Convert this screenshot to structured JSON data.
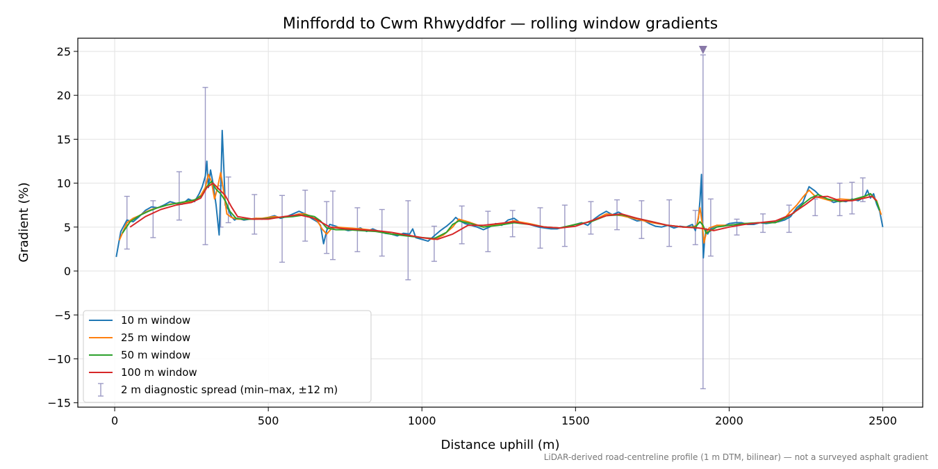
{
  "chart_data": {
    "type": "line",
    "title": "Minffordd to Cwm Rhwyddfor — rolling window gradients",
    "xlabel": "Distance uphill (m)",
    "ylabel": "Gradient (%)",
    "xlim": [
      -120,
      2630
    ],
    "ylim": [
      -15.5,
      26.5
    ],
    "xticks": [
      0,
      500,
      1000,
      1500,
      2000,
      2500
    ],
    "xtick_labels": [
      "0",
      "500",
      "1000",
      "1500",
      "2000",
      "2500"
    ],
    "yticks": [
      -15,
      -10,
      -5,
      0,
      5,
      10,
      15,
      20,
      25
    ],
    "ytick_labels": [
      "−15",
      "−10",
      "−5",
      "0",
      "5",
      "10",
      "15",
      "20",
      "25"
    ],
    "grid": true,
    "legend_position": "lower-left",
    "footnote": "LiDAR-derived road-centreline profile (1 m DTM, bilinear) — not a surveyed asphalt gradient",
    "series": [
      {
        "name": "10 m window",
        "color": "#1f77b4",
        "x": [
          5,
          20,
          40,
          60,
          80,
          100,
          120,
          140,
          160,
          180,
          200,
          220,
          240,
          260,
          275,
          285,
          295,
          300,
          305,
          312,
          320,
          330,
          340,
          345,
          350,
          355,
          360,
          370,
          380,
          390,
          400,
          420,
          440,
          460,
          480,
          500,
          520,
          540,
          560,
          580,
          600,
          620,
          640,
          660,
          670,
          680,
          690,
          700,
          720,
          740,
          760,
          780,
          800,
          820,
          840,
          860,
          880,
          900,
          920,
          940,
          960,
          970,
          980,
          1000,
          1020,
          1040,
          1060,
          1080,
          1100,
          1110,
          1120,
          1140,
          1160,
          1180,
          1200,
          1220,
          1240,
          1260,
          1280,
          1300,
          1320,
          1340,
          1360,
          1380,
          1400,
          1420,
          1440,
          1460,
          1480,
          1500,
          1520,
          1540,
          1560,
          1580,
          1600,
          1620,
          1640,
          1660,
          1680,
          1700,
          1720,
          1740,
          1760,
          1780,
          1800,
          1820,
          1840,
          1860,
          1880,
          1890,
          1900,
          1905,
          1910,
          1913,
          1916,
          1920,
          1925,
          1930,
          1940,
          1960,
          1980,
          2000,
          2020,
          2040,
          2060,
          2080,
          2100,
          2120,
          2140,
          2160,
          2180,
          2200,
          2220,
          2240,
          2260,
          2280,
          2300,
          2320,
          2340,
          2360,
          2380,
          2400,
          2420,
          2440,
          2450,
          2460,
          2470,
          2480,
          2490,
          2500
        ],
        "values": [
          1.6,
          4.5,
          5.8,
          5.6,
          6.2,
          6.9,
          7.3,
          7.2,
          7.5,
          7.9,
          7.7,
          7.6,
          8.2,
          7.9,
          8.8,
          9.6,
          10.8,
          12.5,
          9.5,
          11.5,
          10.0,
          7.5,
          4.1,
          9.0,
          16.0,
          12.0,
          7.5,
          7.0,
          6.2,
          5.8,
          6.0,
          5.8,
          5.9,
          6.0,
          5.9,
          6.1,
          6.3,
          6.0,
          6.2,
          6.5,
          6.8,
          6.5,
          6.0,
          5.6,
          5.2,
          3.1,
          4.6,
          5.3,
          5.1,
          4.8,
          4.6,
          4.7,
          4.9,
          4.5,
          4.8,
          4.5,
          4.3,
          4.2,
          4.0,
          4.3,
          4.2,
          4.8,
          3.8,
          3.6,
          3.4,
          4.0,
          4.6,
          5.1,
          5.7,
          6.1,
          5.8,
          5.4,
          5.2,
          5.0,
          4.7,
          5.0,
          5.4,
          5.2,
          5.8,
          6.0,
          5.5,
          5.4,
          5.2,
          5.0,
          4.9,
          4.8,
          4.8,
          5.0,
          5.1,
          5.3,
          5.5,
          5.2,
          5.9,
          6.4,
          6.8,
          6.4,
          6.7,
          6.3,
          6.0,
          5.7,
          5.8,
          5.4,
          5.1,
          5.0,
          5.2,
          4.9,
          5.1,
          5.0,
          5.3,
          4.6,
          6.0,
          8.0,
          11.0,
          5.0,
          1.5,
          3.5,
          4.8,
          4.2,
          4.8,
          5.2,
          5.1,
          5.4,
          5.5,
          5.5,
          5.3,
          5.3,
          5.5,
          5.4,
          5.5,
          5.6,
          5.8,
          6.2,
          7.2,
          7.8,
          9.6,
          9.1,
          8.4,
          8.2,
          7.8,
          8.0,
          7.9,
          8.2,
          8.0,
          8.4,
          9.2,
          8.3,
          8.8,
          7.6,
          6.8,
          5.0
        ]
      },
      {
        "name": "25 m window",
        "color": "#ff7f0e",
        "x": [
          15,
          40,
          60,
          80,
          100,
          120,
          140,
          160,
          180,
          200,
          220,
          240,
          260,
          280,
          295,
          305,
          315,
          325,
          335,
          345,
          355,
          365,
          380,
          400,
          420,
          440,
          460,
          480,
          500,
          520,
          540,
          560,
          580,
          600,
          620,
          640,
          660,
          675,
          690,
          705,
          720,
          760,
          800,
          850,
          900,
          950,
          1000,
          1040,
          1070,
          1100,
          1120,
          1150,
          1200,
          1250,
          1300,
          1350,
          1400,
          1450,
          1500,
          1550,
          1600,
          1650,
          1700,
          1750,
          1800,
          1850,
          1880,
          1895,
          1905,
          1912,
          1918,
          1925,
          1935,
          1960,
          2000,
          2050,
          2100,
          2150,
          2180,
          2200,
          2220,
          2240,
          2260,
          2280,
          2300,
          2330,
          2360,
          2400,
          2430,
          2460,
          2480,
          2495
        ],
        "values": [
          3.5,
          5.5,
          6.0,
          6.3,
          6.7,
          7.0,
          7.2,
          7.4,
          7.6,
          7.7,
          7.8,
          7.9,
          8.0,
          8.6,
          9.5,
          11.0,
          10.2,
          8.2,
          9.5,
          11.2,
          9.0,
          6.5,
          6.1,
          5.9,
          5.9,
          5.9,
          6.0,
          6.0,
          6.1,
          6.2,
          6.1,
          6.2,
          6.3,
          6.5,
          6.5,
          6.2,
          5.7,
          4.8,
          4.2,
          4.8,
          5.0,
          4.9,
          4.8,
          4.6,
          4.2,
          4.1,
          3.8,
          3.6,
          4.1,
          5.0,
          5.9,
          5.6,
          5.0,
          5.3,
          5.7,
          5.4,
          5.0,
          4.9,
          5.3,
          5.6,
          6.5,
          6.3,
          5.9,
          5.5,
          5.2,
          5.0,
          5.0,
          5.2,
          7.2,
          5.5,
          3.2,
          4.3,
          4.9,
          5.2,
          5.2,
          5.4,
          5.5,
          5.5,
          6.0,
          6.8,
          7.5,
          8.4,
          9.2,
          8.5,
          8.3,
          8.0,
          8.2,
          8.1,
          8.3,
          8.8,
          8.0,
          6.4
        ]
      },
      {
        "name": "50 m window",
        "color": "#2ca02c",
        "x": [
          25,
          50,
          80,
          110,
          140,
          170,
          200,
          230,
          260,
          285,
          300,
          315,
          330,
          345,
          360,
          375,
          395,
          420,
          460,
          500,
          540,
          580,
          620,
          650,
          670,
          690,
          720,
          760,
          800,
          850,
          900,
          950,
          1000,
          1040,
          1080,
          1100,
          1120,
          1160,
          1200,
          1250,
          1300,
          1350,
          1400,
          1450,
          1500,
          1550,
          1600,
          1650,
          1700,
          1750,
          1800,
          1850,
          1890,
          1905,
          1915,
          1925,
          1940,
          1960,
          2000,
          2050,
          2100,
          2150,
          2180,
          2210,
          2240,
          2265,
          2290,
          2320,
          2360,
          2400,
          2440,
          2460,
          2480,
          2490
        ],
        "values": [
          4.3,
          5.6,
          6.3,
          6.8,
          7.2,
          7.5,
          7.7,
          7.9,
          8.1,
          8.6,
          9.6,
          10.2,
          9.3,
          8.8,
          8.0,
          6.8,
          6.0,
          5.9,
          5.9,
          6.0,
          6.1,
          6.2,
          6.4,
          6.2,
          5.7,
          4.9,
          4.7,
          4.7,
          4.6,
          4.5,
          4.2,
          4.0,
          3.8,
          3.7,
          4.4,
          5.3,
          5.7,
          5.4,
          5.0,
          5.2,
          5.5,
          5.3,
          5.0,
          4.9,
          5.3,
          5.6,
          6.3,
          6.4,
          6.0,
          5.6,
          5.2,
          5.0,
          5.0,
          5.6,
          5.2,
          4.3,
          4.6,
          5.0,
          5.2,
          5.4,
          5.5,
          5.5,
          6.0,
          6.6,
          7.6,
          8.3,
          8.7,
          8.2,
          7.9,
          8.1,
          8.5,
          8.8,
          7.9,
          6.9
        ]
      },
      {
        "name": "100 m window",
        "color": "#d62728",
        "x": [
          50,
          100,
          150,
          200,
          250,
          280,
          300,
          320,
          340,
          360,
          380,
          400,
          450,
          500,
          550,
          600,
          650,
          700,
          750,
          800,
          850,
          900,
          950,
          1000,
          1050,
          1100,
          1150,
          1200,
          1250,
          1300,
          1350,
          1400,
          1450,
          1500,
          1550,
          1600,
          1650,
          1700,
          1750,
          1800,
          1850,
          1900,
          1920,
          1950,
          2000,
          2050,
          2100,
          2150,
          2200,
          2250,
          2280,
          2320,
          2360,
          2400,
          2440,
          2465,
          2480
        ],
        "values": [
          5.0,
          6.2,
          7.0,
          7.5,
          7.8,
          8.3,
          9.5,
          10.0,
          9.3,
          8.6,
          7.3,
          6.2,
          5.9,
          5.9,
          6.2,
          6.4,
          6.0,
          5.0,
          4.8,
          4.7,
          4.6,
          4.4,
          4.1,
          3.8,
          3.6,
          4.2,
          5.2,
          5.2,
          5.4,
          5.6,
          5.3,
          5.0,
          4.9,
          5.1,
          5.7,
          6.3,
          6.5,
          6.0,
          5.6,
          5.2,
          5.0,
          4.9,
          4.8,
          4.6,
          5.0,
          5.3,
          5.5,
          5.7,
          6.4,
          7.6,
          8.4,
          8.5,
          8.0,
          8.0,
          8.3,
          8.5,
          8.0
        ]
      }
    ],
    "error_series": {
      "name": "2 m diagnostic spread (min–max, ±12 m)",
      "color": "#9b99c4",
      "x": [
        40,
        125,
        210,
        295,
        345,
        370,
        455,
        545,
        620,
        690,
        710,
        790,
        870,
        955,
        1040,
        1130,
        1215,
        1295,
        1385,
        1465,
        1550,
        1635,
        1715,
        1805,
        1890,
        1915,
        1940,
        2025,
        2110,
        2195,
        2280,
        2360,
        2400,
        2435
      ],
      "lower": [
        2.5,
        3.8,
        5.8,
        3.0,
        5.0,
        5.5,
        4.2,
        1.0,
        3.4,
        2.0,
        1.3,
        2.2,
        1.7,
        -1.0,
        1.1,
        3.1,
        2.2,
        3.9,
        2.6,
        2.8,
        4.2,
        4.7,
        3.7,
        2.8,
        3.0,
        -13.4,
        1.7,
        4.1,
        4.4,
        4.4,
        6.3,
        6.3,
        6.5,
        7.9
      ],
      "upper": [
        8.5,
        8.0,
        11.3,
        20.9,
        9.7,
        10.7,
        8.7,
        8.6,
        9.2,
        7.9,
        9.1,
        7.2,
        7.0,
        8.0,
        5.1,
        7.4,
        6.8,
        6.9,
        7.2,
        7.5,
        7.9,
        8.1,
        8.0,
        8.1,
        6.9,
        24.6,
        8.2,
        5.9,
        6.5,
        7.5,
        8.2,
        10.0,
        10.1,
        10.6
      ],
      "clipped_marker_x": 1915
    }
  }
}
